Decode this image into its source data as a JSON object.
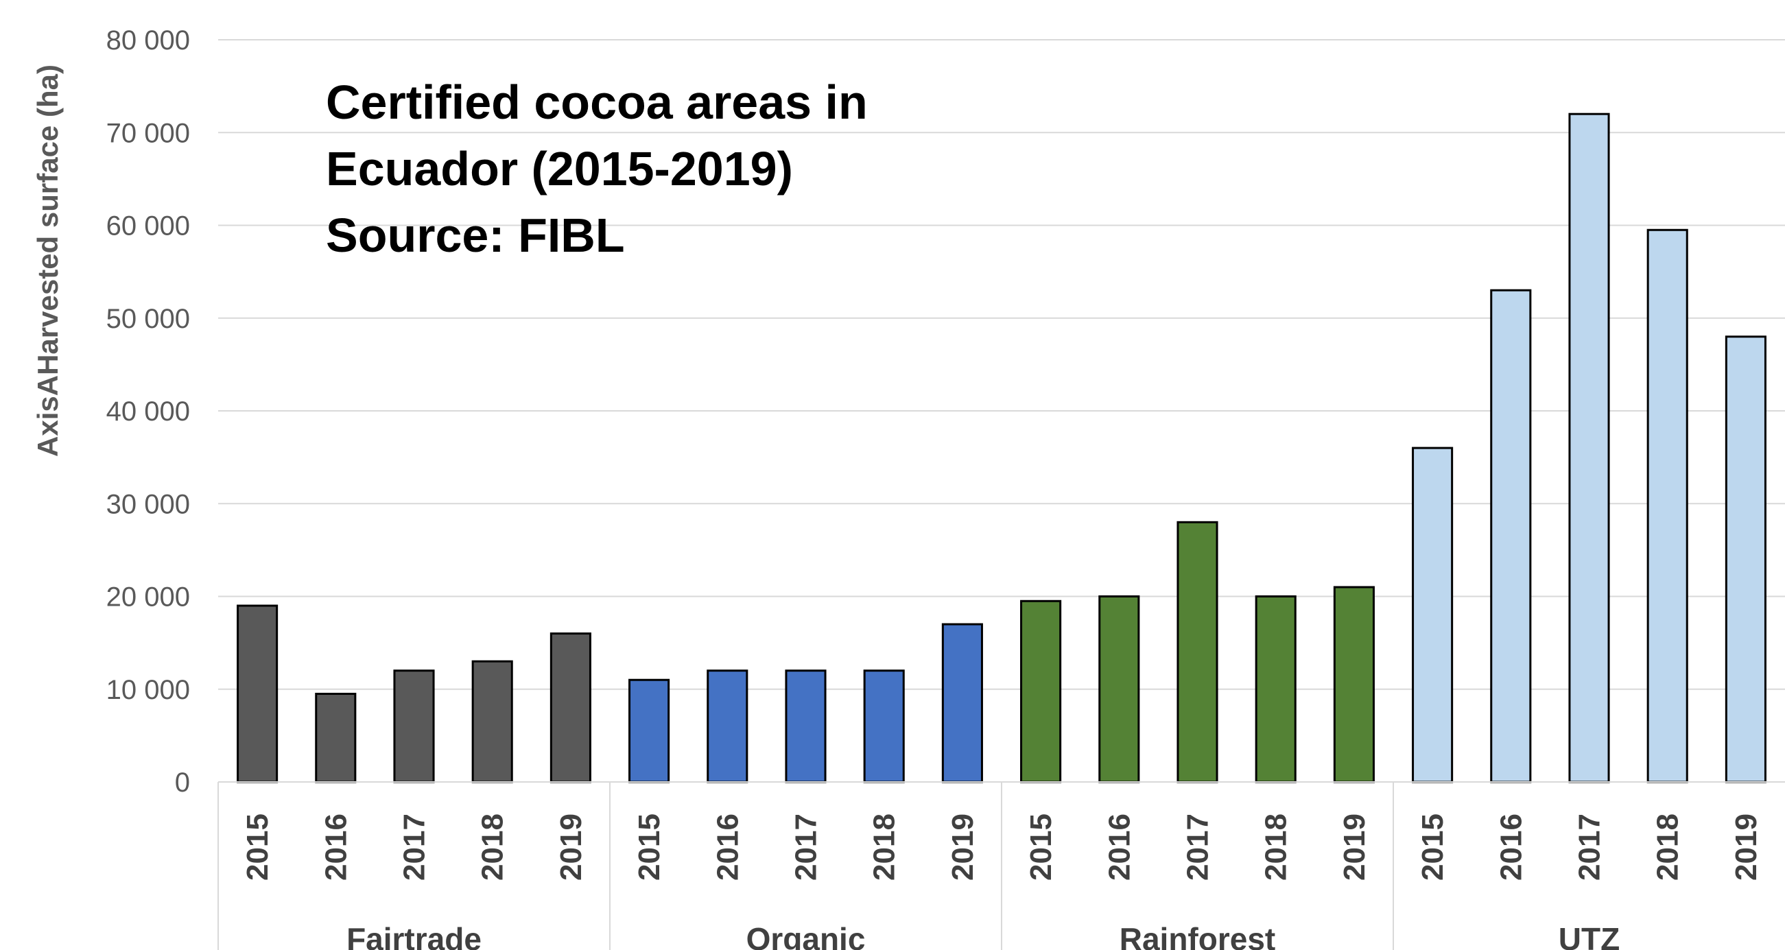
{
  "chart_data": {
    "type": "bar",
    "title_lines": [
      "Certified cocoa areas in",
      "Ecuador (2015-2019)",
      "Source: FIBL"
    ],
    "ylabel": "AxisAHarvested surface (ha)",
    "xlabel": "",
    "ylim": [
      0,
      80000
    ],
    "yticks": [
      0,
      10000,
      20000,
      30000,
      40000,
      50000,
      60000,
      70000,
      80000
    ],
    "ytick_labels": [
      "0",
      "10 000",
      "20 000",
      "30 000",
      "40 000",
      "50 000",
      "60 000",
      "70 000",
      "80 000"
    ],
    "grid": true,
    "legend": "none",
    "groups": [
      {
        "name": "Fairtrade",
        "color": "#595959",
        "categories": [
          "2015",
          "2016",
          "2017",
          "2018",
          "2019"
        ],
        "values": [
          19000,
          9500,
          12000,
          13000,
          16000
        ]
      },
      {
        "name": "Organic",
        "color": "#4472c4",
        "categories": [
          "2015",
          "2016",
          "2017",
          "2018",
          "2019"
        ],
        "values": [
          11000,
          12000,
          12000,
          12000,
          17000
        ]
      },
      {
        "name": "Rainforest",
        "color": "#548235",
        "categories": [
          "2015",
          "2016",
          "2017",
          "2018",
          "2019"
        ],
        "values": [
          19500,
          20000,
          28000,
          20000,
          21000
        ]
      },
      {
        "name": "UTZ",
        "color": "#bdd7ee",
        "categories": [
          "2015",
          "2016",
          "2017",
          "2018",
          "2019"
        ],
        "values": [
          36000,
          53000,
          72000,
          59500,
          48000
        ]
      }
    ]
  }
}
